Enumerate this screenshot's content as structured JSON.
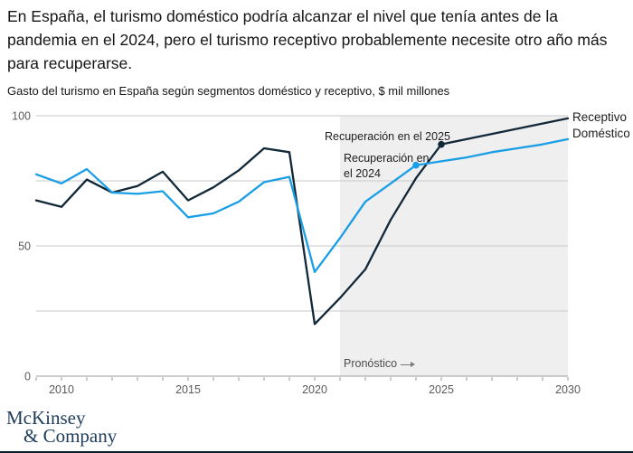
{
  "header": {
    "title": "En España, el turismo doméstico podría alcanzar el nivel que tenía antes de la pandemia en el 2024, pero el turismo receptivo probablemente necesite otro año más para recuperarse.",
    "subtitle": "Gasto del turismo en España según segmentos doméstico y receptivo, $ mil millones"
  },
  "chart_data": {
    "type": "line",
    "title": "Gasto del turismo en España según segmentos doméstico y receptivo, $ mil millones",
    "x": [
      2009,
      2010,
      2011,
      2012,
      2013,
      2014,
      2015,
      2016,
      2017,
      2018,
      2019,
      2020,
      2021,
      2022,
      2023,
      2024,
      2025,
      2026,
      2027,
      2028,
      2029,
      2030
    ],
    "series": [
      {
        "name": "Receptivo",
        "color": "#112838",
        "values": [
          67.5,
          65,
          75.5,
          70.5,
          73,
          78.5,
          67.5,
          72.5,
          79,
          87.5,
          86,
          20,
          30,
          41,
          60,
          76,
          89,
          91,
          93,
          95,
          97,
          99
        ]
      },
      {
        "name": "Doméstico",
        "color": "#1a9ee5",
        "values": [
          77.5,
          74,
          79.5,
          70.5,
          70,
          71,
          61,
          62.5,
          67,
          74.5,
          76.5,
          40,
          53,
          67,
          74,
          81,
          82.5,
          84,
          86,
          87.5,
          89,
          91
        ]
      }
    ],
    "ylim": [
      0,
      100
    ],
    "y_tick_labels": [
      0,
      50,
      100
    ],
    "y_gridlines": [
      25,
      50,
      75,
      100
    ],
    "x_tick_labels": [
      "2010",
      "2015",
      "2020",
      "2025",
      "2030"
    ],
    "legend_position": "right",
    "forecast_start_year": 2021,
    "forecast_label": "Pronóstico",
    "annotations": [
      {
        "id": "recovery-2025",
        "lines": [
          "Recuperación en el 2025"
        ]
      },
      {
        "id": "recovery-2024",
        "lines": [
          "Recuperación en",
          "el 2024"
        ]
      }
    ],
    "markers": [
      {
        "series": "Receptivo",
        "year": 2025,
        "value": 89
      },
      {
        "series": "Doméstico",
        "year": 2024,
        "value": 81
      }
    ],
    "colors": {
      "forecast_band": "#efefef",
      "gridline": "#c9c9c9",
      "axis": "#9b9b9b",
      "tick_text": "#595959"
    }
  },
  "footer": {
    "logo_line1": "McKinsey",
    "logo_line2": "& Company"
  }
}
